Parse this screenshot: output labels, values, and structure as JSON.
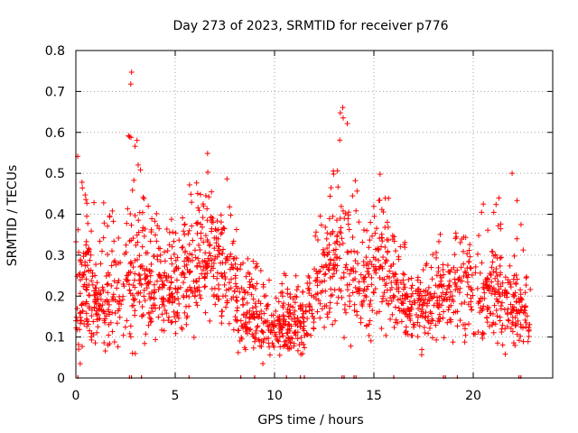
{
  "chart_data": {
    "type": "scatter",
    "title": "Day 273 of 2023, SRMTID for receiver p776",
    "xlabel": "GPS time / hours",
    "ylabel": "SRMTID / TECUs",
    "xlim": [
      0,
      24
    ],
    "ylim": [
      0,
      0.8
    ],
    "x_ticks": [
      0,
      5,
      10,
      15,
      20
    ],
    "y_ticks": [
      0,
      0.1,
      0.2,
      0.3,
      0.4,
      0.5,
      0.6,
      0.7,
      0.8
    ],
    "grid": true,
    "marker": "plus",
    "marker_color": "#ff0000",
    "envelope": [
      {
        "x": 0.0,
        "base": 0.22,
        "spread": 0.12,
        "peak": 0.6
      },
      {
        "x": 1.0,
        "base": 0.18,
        "spread": 0.08,
        "peak": 0.42
      },
      {
        "x": 2.0,
        "base": 0.19,
        "spread": 0.09,
        "peak": 0.45
      },
      {
        "x": 2.8,
        "base": 0.25,
        "spread": 0.14,
        "peak": 0.78
      },
      {
        "x": 3.5,
        "base": 0.24,
        "spread": 0.1,
        "peak": 0.44
      },
      {
        "x": 5.0,
        "base": 0.2,
        "spread": 0.09,
        "peak": 0.4
      },
      {
        "x": 6.5,
        "base": 0.3,
        "spread": 0.1,
        "peak": 0.59
      },
      {
        "x": 7.5,
        "base": 0.25,
        "spread": 0.1,
        "peak": 0.55
      },
      {
        "x": 8.5,
        "base": 0.16,
        "spread": 0.07,
        "peak": 0.3
      },
      {
        "x": 10.0,
        "base": 0.12,
        "spread": 0.05,
        "peak": 0.26
      },
      {
        "x": 11.5,
        "base": 0.13,
        "spread": 0.05,
        "peak": 0.25
      },
      {
        "x": 12.5,
        "base": 0.25,
        "spread": 0.1,
        "peak": 0.45
      },
      {
        "x": 13.5,
        "base": 0.28,
        "spread": 0.12,
        "peak": 0.75
      },
      {
        "x": 14.5,
        "base": 0.2,
        "spread": 0.09,
        "peak": 0.4
      },
      {
        "x": 15.3,
        "base": 0.3,
        "spread": 0.12,
        "peak": 0.54
      },
      {
        "x": 16.5,
        "base": 0.16,
        "spread": 0.06,
        "peak": 0.33
      },
      {
        "x": 18.0,
        "base": 0.18,
        "spread": 0.07,
        "peak": 0.38
      },
      {
        "x": 19.5,
        "base": 0.2,
        "spread": 0.08,
        "peak": 0.36
      },
      {
        "x": 21.0,
        "base": 0.2,
        "spread": 0.09,
        "peak": 0.47
      },
      {
        "x": 22.0,
        "base": 0.19,
        "spread": 0.08,
        "peak": 0.6
      },
      {
        "x": 22.8,
        "base": 0.13,
        "spread": 0.04,
        "peak": 0.22
      }
    ],
    "x_range_with_data": [
      0.0,
      22.9
    ],
    "point_count": 1900,
    "gap_markers_x": [
      0.1,
      2.7,
      2.8,
      3.3,
      5.7,
      8.3,
      9.0,
      10.6,
      11.3,
      11.5,
      13.4,
      13.5,
      14.0,
      14.1,
      16.0,
      18.5,
      18.6,
      19.2,
      22.3,
      22.4
    ]
  }
}
